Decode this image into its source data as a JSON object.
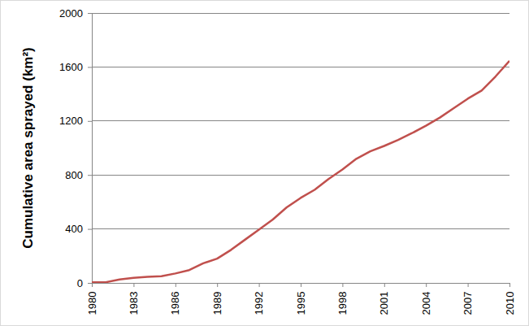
{
  "chart_data": {
    "type": "line",
    "y_label": "Cumulative area sprayed (km²)",
    "x": [
      1980,
      1981,
      1982,
      1983,
      1984,
      1985,
      1986,
      1987,
      1988,
      1989,
      1990,
      1991,
      1992,
      1993,
      1994,
      1995,
      1996,
      1997,
      1998,
      1999,
      2000,
      2001,
      2002,
      2003,
      2004,
      2005,
      2006,
      2007,
      2008,
      2009,
      2010
    ],
    "values": [
      5,
      5,
      25,
      38,
      45,
      50,
      70,
      95,
      145,
      180,
      245,
      320,
      395,
      470,
      560,
      630,
      690,
      770,
      840,
      920,
      975,
      1015,
      1060,
      1110,
      1165,
      1225,
      1295,
      1365,
      1425,
      1530,
      1645
    ],
    "color": "#c0504d",
    "xlim": [
      1980,
      2010
    ],
    "xticks": [
      1980,
      1983,
      1986,
      1989,
      1992,
      1995,
      1998,
      2001,
      2004,
      2007,
      2010
    ],
    "ylim": [
      0,
      2000
    ],
    "yticks": [
      0,
      400,
      800,
      1200,
      1600,
      2000
    ],
    "grid": true
  }
}
